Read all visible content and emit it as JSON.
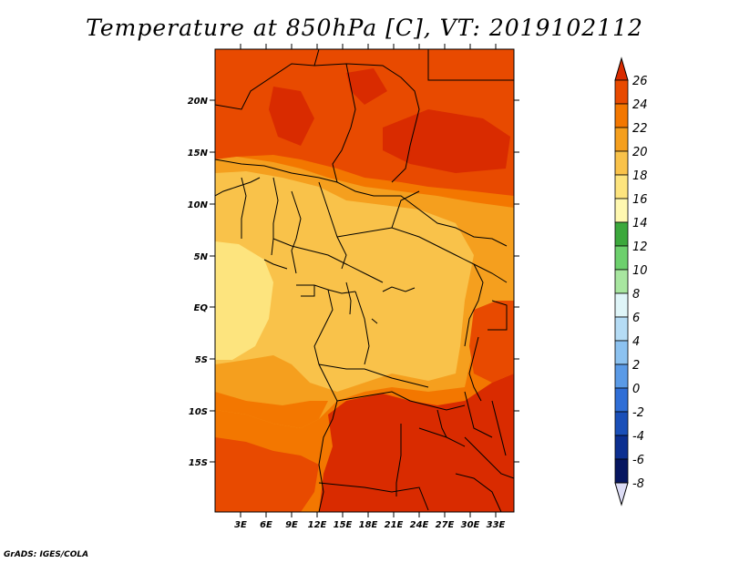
{
  "title": "Temperature at 850hPa [C], VT: 2019102112",
  "credit": "GrADS: IGES/COLA",
  "lat_labels": [
    "20N",
    "15N",
    "10N",
    "5N",
    "EQ",
    "5S",
    "10S",
    "15S"
  ],
  "lon_labels": [
    "3E",
    "6E",
    "9E",
    "12E",
    "15E",
    "18E",
    "21E",
    "24E",
    "27E",
    "30E",
    "33E"
  ],
  "colorbar": {
    "labels": [
      "26",
      "24",
      "22",
      "20",
      "18",
      "16",
      "14",
      "12",
      "10",
      "8",
      "6",
      "4",
      "2",
      "0",
      "-2",
      "-4",
      "-6",
      "-8"
    ],
    "colors": [
      "#ffffff",
      "#d92b00",
      "#e84a00",
      "#f37700",
      "#f59f1e",
      "#f9c24a",
      "#fde47e",
      "#fff8b0",
      "#3ca83c",
      "#6dd06d",
      "#a8e6a0",
      "#dff5f8",
      "#b5dcf5",
      "#8cc2f0",
      "#5a9ae6",
      "#2f6ed6",
      "#1a4fb8",
      "#0c2f90",
      "#061660"
    ]
  },
  "map_colors": {
    "deep_red": "#d92b00",
    "red": "#e84a00",
    "orange": "#f37700",
    "light_orange": "#f59f1e",
    "amber": "#f9c24a",
    "pale": "#fde47e"
  }
}
